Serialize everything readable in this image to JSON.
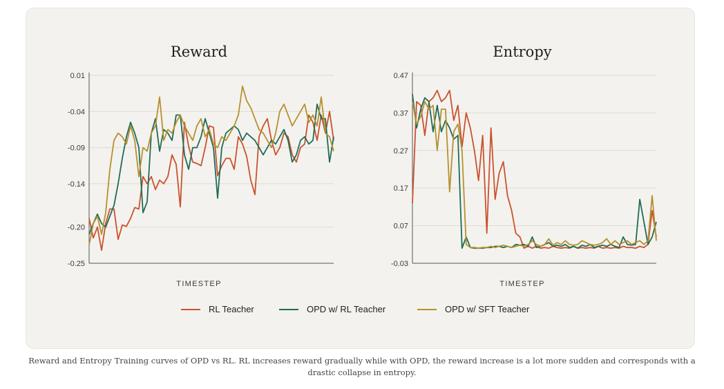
{
  "caption": "Reward and Entropy Training curves of OPD vs RL. RL increases reward gradually while with OPD, the reward increase is a lot more sudden and corresponds with a drastic collapse in entropy.",
  "colors": {
    "rl": "#c8522e",
    "opd_rl": "#1e6b58",
    "opd_sft": "#b4912f",
    "grid": "#dedbd4",
    "axis": "#555555"
  },
  "legend": [
    {
      "label": "RL Teacher",
      "color": "#c8522e"
    },
    {
      "label": "OPD w/ RL Teacher",
      "color": "#1e6b58"
    },
    {
      "label": "OPD w/ SFT Teacher",
      "color": "#b4912f"
    }
  ],
  "chart_data": [
    {
      "type": "line",
      "title": "Reward",
      "xlabel": "TIMESTEP",
      "ylabel": "",
      "yticks": [
        "0.01",
        "-0.04",
        "-0.09",
        "-0.14",
        "-0.20",
        "-0.25"
      ],
      "ylim": [
        -0.25,
        0.01
      ],
      "grid": true,
      "x_points": 60,
      "series": [
        {
          "name": "RL Teacher",
          "color": "#c8522e",
          "values": [
            -0.188,
            -0.215,
            -0.2,
            -0.232,
            -0.195,
            -0.175,
            -0.175,
            -0.217,
            -0.197,
            -0.199,
            -0.188,
            -0.173,
            -0.175,
            -0.13,
            -0.14,
            -0.13,
            -0.148,
            -0.135,
            -0.14,
            -0.13,
            -0.1,
            -0.113,
            -0.172,
            -0.055,
            -0.088,
            -0.11,
            -0.112,
            -0.115,
            -0.09,
            -0.06,
            -0.062,
            -0.129,
            -0.115,
            -0.105,
            -0.105,
            -0.12,
            -0.075,
            -0.085,
            -0.102,
            -0.135,
            -0.155,
            -0.075,
            -0.06,
            -0.05,
            -0.08,
            -0.1,
            -0.09,
            -0.07,
            -0.075,
            -0.1,
            -0.11,
            -0.09,
            -0.085,
            -0.045,
            -0.055,
            -0.08,
            -0.045,
            -0.07,
            -0.04,
            -0.08
          ]
        },
        {
          "name": "OPD w/ RL Teacher",
          "color": "#1e6b58",
          "values": [
            -0.21,
            -0.195,
            -0.182,
            -0.195,
            -0.2,
            -0.185,
            -0.17,
            -0.14,
            -0.105,
            -0.075,
            -0.055,
            -0.07,
            -0.09,
            -0.18,
            -0.165,
            -0.07,
            -0.05,
            -0.095,
            -0.065,
            -0.07,
            -0.08,
            -0.045,
            -0.045,
            -0.1,
            -0.12,
            -0.09,
            -0.09,
            -0.075,
            -0.05,
            -0.07,
            -0.09,
            -0.16,
            -0.09,
            -0.07,
            -0.065,
            -0.06,
            -0.065,
            -0.08,
            -0.07,
            -0.075,
            -0.08,
            -0.09,
            -0.1,
            -0.09,
            -0.08,
            -0.085,
            -0.075,
            -0.065,
            -0.08,
            -0.11,
            -0.1,
            -0.08,
            -0.075,
            -0.085,
            -0.08,
            -0.03,
            -0.05,
            -0.05,
            -0.11,
            -0.075
          ]
        },
        {
          "name": "OPD w/ SFT Teacher",
          "color": "#b4912f",
          "values": [
            -0.225,
            -0.195,
            -0.185,
            -0.21,
            -0.18,
            -0.12,
            -0.08,
            -0.07,
            -0.075,
            -0.085,
            -0.06,
            -0.08,
            -0.13,
            -0.09,
            -0.095,
            -0.07,
            -0.06,
            -0.02,
            -0.08,
            -0.065,
            -0.07,
            -0.055,
            -0.045,
            -0.06,
            -0.07,
            -0.08,
            -0.06,
            -0.05,
            -0.075,
            -0.065,
            -0.085,
            -0.09,
            -0.075,
            -0.08,
            -0.07,
            -0.06,
            -0.045,
            -0.005,
            -0.025,
            -0.035,
            -0.05,
            -0.065,
            -0.07,
            -0.08,
            -0.09,
            -0.07,
            -0.04,
            -0.03,
            -0.045,
            -0.06,
            -0.05,
            -0.04,
            -0.03,
            -0.055,
            -0.045,
            -0.06,
            -0.02,
            -0.07,
            -0.075,
            -0.095
          ]
        }
      ]
    },
    {
      "type": "line",
      "title": "Entropy",
      "xlabel": "TIMESTEP",
      "ylabel": "",
      "yticks": [
        "0.47",
        "0.37",
        "0.27",
        "0.17",
        "0.07",
        "-0.03"
      ],
      "ylim": [
        -0.03,
        0.47
      ],
      "grid": true,
      "x_points": 60,
      "series": [
        {
          "name": "RL Teacher",
          "color": "#c8522e",
          "values": [
            0.13,
            0.4,
            0.39,
            0.31,
            0.4,
            0.41,
            0.43,
            0.4,
            0.41,
            0.43,
            0.35,
            0.39,
            0.28,
            0.37,
            0.33,
            0.27,
            0.19,
            0.31,
            0.05,
            0.33,
            0.14,
            0.21,
            0.24,
            0.15,
            0.11,
            0.05,
            0.04,
            0.01,
            0.015,
            0.01,
            0.015,
            0.01,
            0.012,
            0.01,
            0.015,
            0.012,
            0.01,
            0.012,
            0.01,
            0.015,
            0.01,
            0.012,
            0.01,
            0.012,
            0.01,
            0.015,
            0.01,
            0.012,
            0.01,
            0.012,
            0.01,
            0.015,
            0.012,
            0.012,
            0.01,
            0.015,
            0.012,
            0.02,
            0.11,
            0.04
          ]
        },
        {
          "name": "OPD w/ RL Teacher",
          "color": "#1e6b58",
          "values": [
            0.42,
            0.33,
            0.38,
            0.41,
            0.4,
            0.32,
            0.39,
            0.32,
            0.35,
            0.33,
            0.3,
            0.31,
            0.01,
            0.04,
            0.012,
            0.01,
            0.01,
            0.01,
            0.012,
            0.012,
            0.015,
            0.015,
            0.012,
            0.015,
            0.012,
            0.02,
            0.018,
            0.02,
            0.015,
            0.04,
            0.012,
            0.015,
            0.02,
            0.025,
            0.015,
            0.018,
            0.015,
            0.02,
            0.012,
            0.015,
            0.01,
            0.018,
            0.015,
            0.02,
            0.012,
            0.015,
            0.018,
            0.015,
            0.02,
            0.015,
            0.012,
            0.04,
            0.02,
            0.018,
            0.02,
            0.14,
            0.08,
            0.02,
            0.04,
            0.08
          ]
        },
        {
          "name": "OPD w/ SFT Teacher",
          "color": "#b4912f",
          "values": [
            0.4,
            0.34,
            0.36,
            0.4,
            0.38,
            0.39,
            0.27,
            0.38,
            0.38,
            0.16,
            0.32,
            0.34,
            0.27,
            0.02,
            0.012,
            0.012,
            0.01,
            0.012,
            0.012,
            0.015,
            0.012,
            0.015,
            0.018,
            0.015,
            0.012,
            0.015,
            0.018,
            0.015,
            0.02,
            0.03,
            0.02,
            0.015,
            0.02,
            0.035,
            0.018,
            0.025,
            0.02,
            0.03,
            0.02,
            0.018,
            0.02,
            0.03,
            0.025,
            0.02,
            0.018,
            0.02,
            0.025,
            0.035,
            0.02,
            0.03,
            0.02,
            0.025,
            0.03,
            0.02,
            0.025,
            0.03,
            0.02,
            0.03,
            0.15,
            0.03
          ]
        }
      ]
    }
  ]
}
